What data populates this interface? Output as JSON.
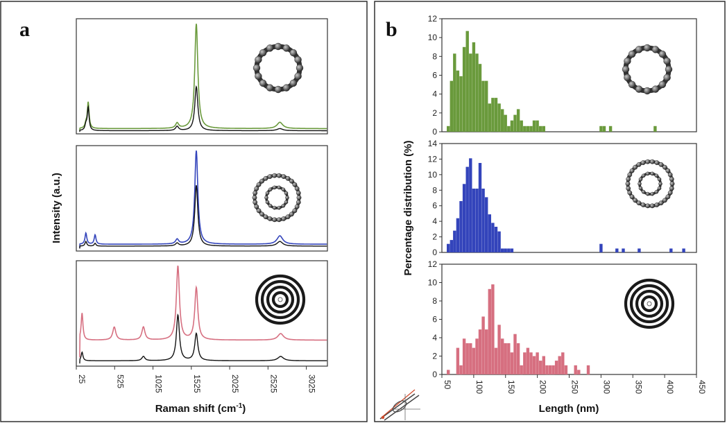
{
  "panel_a": {
    "letter": "a",
    "xlabel_main": "Raman shift (cm",
    "xlabel_sup": "-1",
    "xlabel_tail": ")",
    "ylabel": "Intensity (a.u.)",
    "xticks": [
      "25",
      "525",
      "1025",
      "1525",
      "2025",
      "2525",
      "3025"
    ]
  },
  "panel_b": {
    "letter": "b",
    "xlabel": "Length (nm)",
    "ylabel": "Percentage distribution (%)",
    "xticks": [
      "50",
      "100",
      "150",
      "200",
      "250",
      "300",
      "350",
      "400",
      "450"
    ]
  },
  "colors": {
    "swcnt": "#6a9a3c",
    "dwcnt": "#3344bb",
    "mwcnt": "#d66f80",
    "reference": "#111111"
  },
  "icons": [
    "single-wall-nanotube-icon",
    "double-wall-nanotube-icon",
    "multi-wall-nanotube-icon",
    "tilted-nanotube-schematic-icon"
  ],
  "chart_data": [
    {
      "type": "line",
      "xlabel": "Raman shift (cm-1)",
      "ylabel": "Intensity (a.u.)",
      "xlim": [
        25,
        3300
      ],
      "xticks": [
        25,
        525,
        1025,
        1525,
        2025,
        2525,
        3025
      ],
      "subplots": [
        {
          "peaks_colored": [
            [
              150,
              0.04
            ],
            [
              180,
              0.25
            ],
            [
              1340,
              0.05
            ],
            [
              1590,
              1.0
            ],
            [
              2680,
              0.06
            ]
          ],
          "peaks_black": [
            [
              150,
              0.05
            ],
            [
              180,
              0.22
            ],
            [
              1340,
              0.04
            ],
            [
              1590,
              0.42
            ],
            [
              2680,
              0.02
            ]
          ],
          "baseline_colored": 0.03,
          "baseline_black": 0.01,
          "color": "#6a9a3c"
        },
        {
          "peaks_colored": [
            [
              150,
              0.12
            ],
            [
              270,
              0.1
            ],
            [
              1340,
              0.05
            ],
            [
              1590,
              1.0
            ],
            [
              2680,
              0.09
            ]
          ],
          "peaks_black": [
            [
              150,
              0.05
            ],
            [
              270,
              0.03
            ],
            [
              1340,
              0.03
            ],
            [
              1590,
              0.65
            ],
            [
              2680,
              0.05
            ]
          ],
          "baseline_colored": 0.05,
          "baseline_black": 0.03,
          "color": "#3344bb"
        },
        {
          "peaks_colored": [
            [
              100,
              0.25
            ],
            [
              520,
              0.12
            ],
            [
              900,
              0.12
            ],
            [
              1350,
              0.68
            ],
            [
              1590,
              0.48
            ],
            [
              2690,
              0.06
            ]
          ],
          "peaks_black": [
            [
              100,
              0.08
            ],
            [
              900,
              0.04
            ],
            [
              1350,
              0.42
            ],
            [
              1590,
              0.25
            ],
            [
              2690,
              0.04
            ]
          ],
          "baseline_colored": 0.22,
          "baseline_black": 0.03,
          "color": "#d66f80"
        }
      ]
    },
    {
      "type": "bar",
      "xlabel": "Length (nm)",
      "ylabel": "Percentage distribution (%)",
      "xlim": [
        50,
        450
      ],
      "xticks": [
        50,
        100,
        150,
        200,
        250,
        300,
        350,
        400,
        450
      ],
      "series": [
        {
          "color": "#6a9a3c",
          "ylim": [
            0,
            12
          ],
          "yticks": [
            0,
            2,
            4,
            6,
            8,
            10,
            12
          ],
          "x": [
            60,
            65,
            70,
            75,
            80,
            85,
            90,
            95,
            100,
            105,
            110,
            115,
            120,
            125,
            130,
            135,
            140,
            145,
            150,
            155,
            160,
            165,
            170,
            175,
            180,
            185,
            190,
            195,
            200,
            205,
            210,
            215,
            220,
            225,
            230,
            235,
            240,
            245,
            250,
            255,
            260,
            265,
            270,
            275,
            280,
            285,
            290,
            295,
            300,
            305,
            310,
            315,
            320,
            325,
            330,
            335,
            340,
            345,
            350,
            355,
            360,
            365,
            370,
            375,
            380,
            385
          ],
          "values": [
            0.6,
            5.4,
            8.3,
            6.5,
            5.9,
            9.0,
            10.7,
            8.3,
            9.5,
            8.3,
            7.2,
            5.4,
            5.4,
            3.0,
            3.6,
            3.6,
            3.0,
            2.4,
            1.8,
            0.6,
            1.2,
            1.8,
            2.4,
            1.2,
            0.6,
            0.6,
            0.6,
            1.2,
            1.2,
            0.6,
            0.6,
            0,
            0,
            0,
            0,
            0,
            0,
            0,
            0,
            0,
            0,
            0,
            0,
            0,
            0,
            0,
            0,
            0,
            0.6,
            0.6,
            0,
            0.6,
            0,
            0,
            0,
            0,
            0,
            0,
            0,
            0,
            0,
            0,
            0,
            0,
            0,
            0.6
          ]
        },
        {
          "color": "#3344bb",
          "ylim": [
            0,
            14
          ],
          "yticks": [
            0,
            2,
            4,
            6,
            8,
            10,
            12,
            14
          ],
          "x": [
            60,
            65,
            70,
            75,
            80,
            85,
            90,
            95,
            100,
            105,
            110,
            115,
            120,
            125,
            130,
            135,
            140,
            145,
            150,
            155,
            160,
            165,
            170,
            175,
            180,
            185,
            190,
            195,
            200,
            205,
            210,
            215,
            220,
            225,
            230,
            235,
            240,
            245,
            250,
            255,
            260,
            265,
            270,
            275,
            280,
            285,
            290,
            295,
            300,
            305,
            310,
            315,
            320,
            325,
            330,
            335,
            340,
            345,
            350,
            355,
            360,
            365,
            370,
            375,
            380,
            385,
            390,
            395,
            400,
            405,
            410,
            415,
            420,
            425,
            430
          ],
          "values": [
            1.1,
            1.6,
            2.8,
            4.4,
            6.6,
            8.8,
            11.0,
            12.1,
            8.2,
            8.2,
            11.5,
            8.2,
            7.1,
            4.9,
            3.8,
            3.3,
            2.7,
            0.5,
            0.5,
            0.5,
            0.5,
            0,
            0,
            0,
            0,
            0,
            0,
            0,
            0,
            0,
            0,
            0,
            0,
            0,
            0,
            0,
            0,
            0,
            0,
            0,
            0,
            0,
            0,
            0,
            0,
            0,
            0,
            0,
            1.1,
            0,
            0,
            0,
            0,
            0.5,
            0,
            0.5,
            0,
            0,
            0,
            0,
            0.5,
            0,
            0,
            0,
            0,
            0,
            0,
            0,
            0,
            0,
            0.5,
            0,
            0,
            0,
            0.5
          ]
        },
        {
          "color": "#d66f80",
          "ylim": [
            0,
            12
          ],
          "yticks": [
            0,
            2,
            4,
            6,
            8,
            10,
            12
          ],
          "x": [
            60,
            65,
            70,
            75,
            80,
            85,
            90,
            95,
            100,
            105,
            110,
            115,
            120,
            125,
            130,
            135,
            140,
            145,
            150,
            155,
            160,
            165,
            170,
            175,
            180,
            185,
            190,
            195,
            200,
            205,
            210,
            215,
            220,
            225,
            230,
            235,
            240,
            245,
            250,
            255,
            260,
            265,
            270,
            275,
            280,
            285,
            290,
            295,
            300,
            305,
            310,
            315,
            320,
            325,
            330,
            335,
            340,
            345,
            350,
            355,
            360,
            365,
            370,
            375,
            380,
            385,
            390,
            395,
            400
          ],
          "values": [
            0.5,
            0,
            0,
            2.9,
            1.0,
            3.9,
            3.4,
            3.4,
            2.9,
            3.9,
            4.9,
            6.3,
            4.9,
            9.3,
            9.8,
            2.9,
            5.4,
            3.9,
            3.4,
            3.4,
            2.4,
            4.4,
            3.4,
            1.0,
            2.4,
            2.9,
            2.4,
            2.0,
            2.4,
            1.5,
            2.0,
            1.0,
            1.0,
            1.0,
            1.5,
            2.0,
            2.4,
            1.0,
            0,
            0,
            1.0,
            0.5,
            0,
            0,
            1.0,
            0,
            0,
            0,
            0,
            0,
            0,
            0,
            0,
            0,
            0,
            0,
            0,
            0,
            0,
            0,
            0,
            0,
            0,
            0,
            0,
            0,
            0,
            0,
            0
          ]
        }
      ]
    }
  ]
}
